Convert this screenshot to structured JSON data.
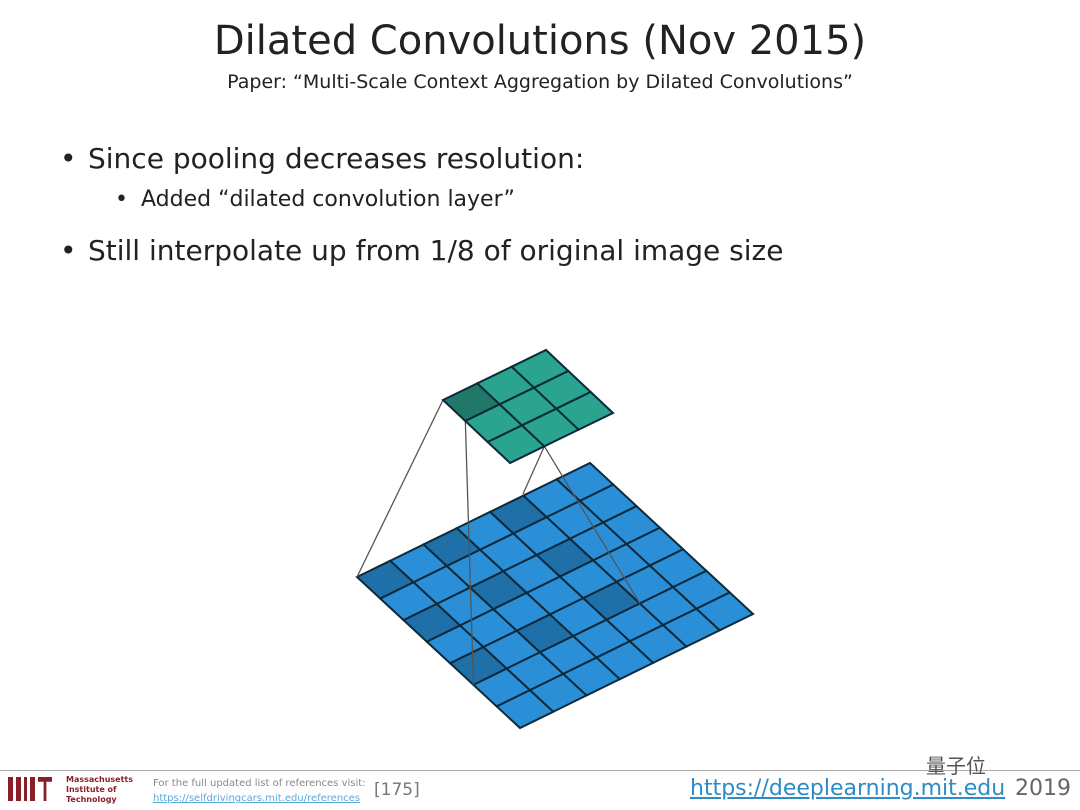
{
  "slide": {
    "title": "Dilated Convolutions (Nov 2015)",
    "subtitle": "Paper: “Multi-Scale Context Aggregation by Dilated Convolutions”",
    "bullets": [
      {
        "text": "Since pooling decreases resolution:",
        "sub": [
          "Added “dilated convolution layer”"
        ]
      },
      {
        "text": "Still interpolate up from 1/8 of original image size"
      }
    ],
    "bullet_glyph": "•"
  },
  "diagram": {
    "input_grid_size": 7,
    "output_grid_size": 3,
    "dilation": 2,
    "kernel_size": 3,
    "colors": {
      "input": "#2b8fd8",
      "input_highlight": "#1f6fa8",
      "output": "#2aa38f",
      "output_highlight": "#1f7868",
      "grid_line": "#0d2a3a"
    }
  },
  "footer": {
    "logo_text": [
      "Massachusetts",
      "Institute of",
      "Technology"
    ],
    "refs_label": "For the full updated list of references visit:",
    "refs_link": "https://selfdrivingcars.mit.edu/references",
    "slide_ref": "[175]",
    "site": "https://deeplearning.mit.edu",
    "year": "2019",
    "watermark": "量子位"
  }
}
